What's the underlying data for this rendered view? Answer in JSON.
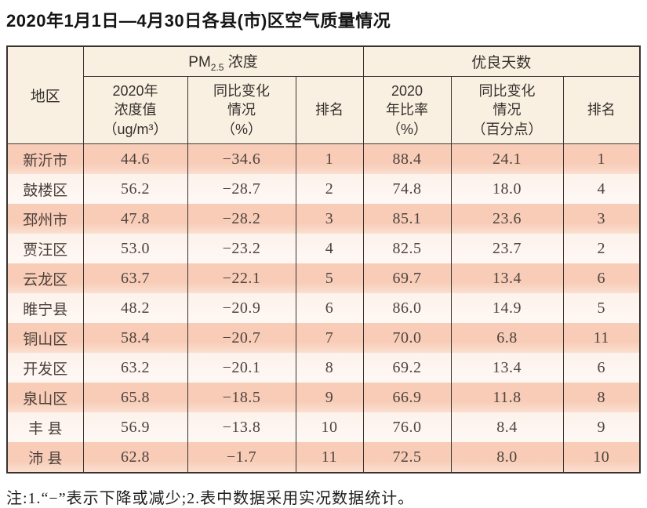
{
  "page": {
    "title": "2020年1月1日—4月30日各县(市)区空气质量情况",
    "footnote": "注:1.“−”表示下降或减少;2.表中数据采用实况数据统计。"
  },
  "colors": {
    "border": "#38332f",
    "header_bg": "#faf0e2",
    "row_odd": "#f8ccb7",
    "row_even": "#fdf2ec"
  },
  "table": {
    "region_header": "地区",
    "group_pm": {
      "prefix": "PM",
      "sub": "2.5",
      "suffix": " 浓度"
    },
    "group_good": "优良天数",
    "sub_headers": {
      "pm_value": "2020年\n浓度值\n（ug/m³）",
      "pm_change": "同比变化\n情况\n（%）",
      "pm_rank": "排名",
      "good_ratio": "2020\n年比率\n（%）",
      "good_change": "同比变化\n情况\n（百分点）",
      "good_rank": "排名"
    },
    "rows": [
      {
        "region": "新沂市",
        "pm_value": "44.6",
        "pm_change": "−34.6",
        "pm_rank": "1",
        "good_ratio": "88.4",
        "good_change": "24.1",
        "good_rank": "1"
      },
      {
        "region": "鼓楼区",
        "pm_value": "56.2",
        "pm_change": "−28.7",
        "pm_rank": "2",
        "good_ratio": "74.8",
        "good_change": "18.0",
        "good_rank": "4"
      },
      {
        "region": "邳州市",
        "pm_value": "47.8",
        "pm_change": "−28.2",
        "pm_rank": "3",
        "good_ratio": "85.1",
        "good_change": "23.6",
        "good_rank": "3"
      },
      {
        "region": "贾汪区",
        "pm_value": "53.0",
        "pm_change": "−23.2",
        "pm_rank": "4",
        "good_ratio": "82.5",
        "good_change": "23.7",
        "good_rank": "2"
      },
      {
        "region": "云龙区",
        "pm_value": "63.7",
        "pm_change": "−22.1",
        "pm_rank": "5",
        "good_ratio": "69.7",
        "good_change": "13.4",
        "good_rank": "6"
      },
      {
        "region": "睢宁县",
        "pm_value": "48.2",
        "pm_change": "−20.9",
        "pm_rank": "6",
        "good_ratio": "86.0",
        "good_change": "14.9",
        "good_rank": "5"
      },
      {
        "region": "铜山区",
        "pm_value": "58.4",
        "pm_change": "−20.7",
        "pm_rank": "7",
        "good_ratio": "70.0",
        "good_change": "6.8",
        "good_rank": "11"
      },
      {
        "region": "开发区",
        "pm_value": "63.2",
        "pm_change": "−20.1",
        "pm_rank": "8",
        "good_ratio": "69.2",
        "good_change": "13.4",
        "good_rank": "6"
      },
      {
        "region": "泉山区",
        "pm_value": "65.8",
        "pm_change": "−18.5",
        "pm_rank": "9",
        "good_ratio": "66.9",
        "good_change": "11.8",
        "good_rank": "8"
      },
      {
        "region": "丰 县",
        "pm_value": "56.9",
        "pm_change": "−13.8",
        "pm_rank": "10",
        "good_ratio": "76.0",
        "good_change": "8.4",
        "good_rank": "9"
      },
      {
        "region": "沛 县",
        "pm_value": "62.8",
        "pm_change": "−1.7",
        "pm_rank": "11",
        "good_ratio": "72.5",
        "good_change": "8.0",
        "good_rank": "10"
      }
    ]
  }
}
